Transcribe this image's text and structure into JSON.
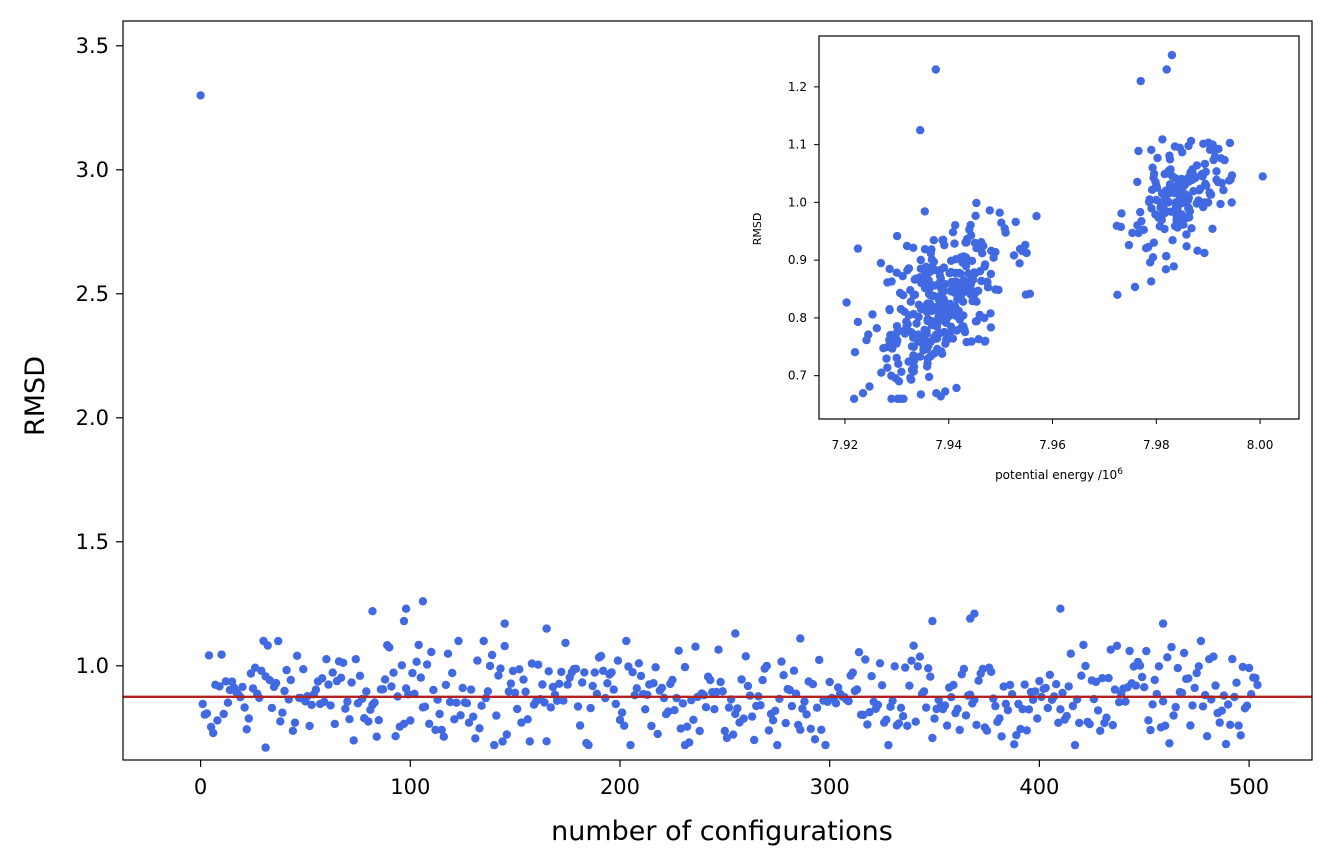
{
  "chart_data": [
    {
      "type": "scatter",
      "name": "main",
      "xlabel": "number of configurations",
      "ylabel": "RMSD",
      "xlim": [
        -37,
        530
      ],
      "ylim": [
        0.62,
        3.6
      ],
      "xticks": [
        0,
        100,
        200,
        300,
        400,
        500
      ],
      "yticks": [
        1.0,
        1.5,
        2.0,
        2.5,
        3.0,
        3.5
      ],
      "point_color": "#4169e1",
      "hline": {
        "y": 0.875,
        "color": "#b22222"
      },
      "n_points": 505,
      "outlier": {
        "x": 0,
        "y": 3.3
      },
      "highlights": [
        {
          "x": 82,
          "y": 1.22
        },
        {
          "x": 97,
          "y": 1.18
        },
        {
          "x": 98,
          "y": 1.23
        },
        {
          "x": 106,
          "y": 1.26
        },
        {
          "x": 145,
          "y": 1.17
        },
        {
          "x": 165,
          "y": 1.15
        },
        {
          "x": 255,
          "y": 1.13
        },
        {
          "x": 286,
          "y": 1.11
        },
        {
          "x": 349,
          "y": 1.18
        },
        {
          "x": 367,
          "y": 1.19
        },
        {
          "x": 369,
          "y": 1.21
        },
        {
          "x": 410,
          "y": 1.23
        },
        {
          "x": 459,
          "y": 1.17
        },
        {
          "x": 231,
          "y": 0.68
        },
        {
          "x": 31,
          "y": 0.67
        }
      ],
      "baseline": {
        "mean": 0.88,
        "min": 0.68,
        "max": 1.1
      }
    },
    {
      "type": "scatter",
      "name": "inset",
      "xlabel": "potential energy /10",
      "xlabel_sup": "6",
      "ylabel": "RMSD",
      "xlim": [
        7.915,
        8.0075
      ],
      "ylim": [
        0.625,
        1.288
      ],
      "xticks": [
        "7.92",
        "7.94",
        "7.96",
        "7.98",
        "8.00"
      ],
      "yticks": [
        "0.7",
        "0.8",
        "0.9",
        "1.0",
        "1.1",
        "1.2"
      ],
      "point_color": "#4169e1",
      "clusters": [
        {
          "center_x": 7.938,
          "center_y": 0.82,
          "spread_x": 0.0065,
          "spread_y": 0.075,
          "count": 330
        },
        {
          "center_x": 7.984,
          "center_y": 1.0,
          "spread_x": 0.005,
          "spread_y": 0.055,
          "count": 165
        }
      ],
      "highlights": [
        {
          "x": 7.9375,
          "y": 1.23
        },
        {
          "x": 7.983,
          "y": 1.255
        },
        {
          "x": 7.982,
          "y": 1.23
        },
        {
          "x": 7.977,
          "y": 1.21
        },
        {
          "x": 7.9345,
          "y": 1.125
        },
        {
          "x": 8.0005,
          "y": 1.045
        },
        {
          "x": 7.9725,
          "y": 0.84
        },
        {
          "x": 7.931,
          "y": 0.66
        },
        {
          "x": 7.9225,
          "y": 0.92
        }
      ]
    }
  ]
}
